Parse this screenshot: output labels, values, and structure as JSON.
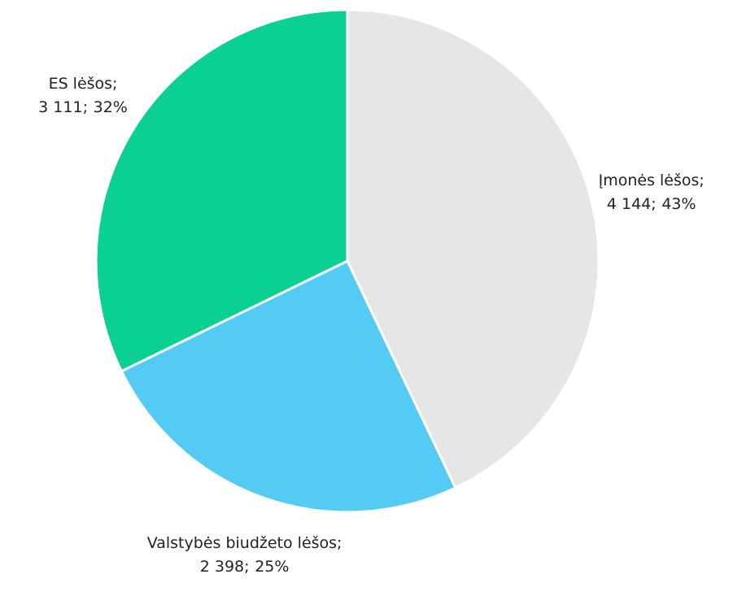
{
  "chart_data": {
    "type": "pie",
    "categories": [
      "Įmonės lėšos;",
      "Valstybės biudžeto lėšos;",
      "ES lėšos;"
    ],
    "values": [
      4144,
      2398,
      3111
    ],
    "value_labels": [
      "4 144;",
      "2 398;",
      "3 111;"
    ],
    "percentages": [
      43,
      25,
      32
    ],
    "percentage_labels": [
      "43%",
      "25%",
      "32%"
    ],
    "colors": [
      "#e6e6e6",
      "#53cbf4",
      "#0ad192"
    ]
  }
}
